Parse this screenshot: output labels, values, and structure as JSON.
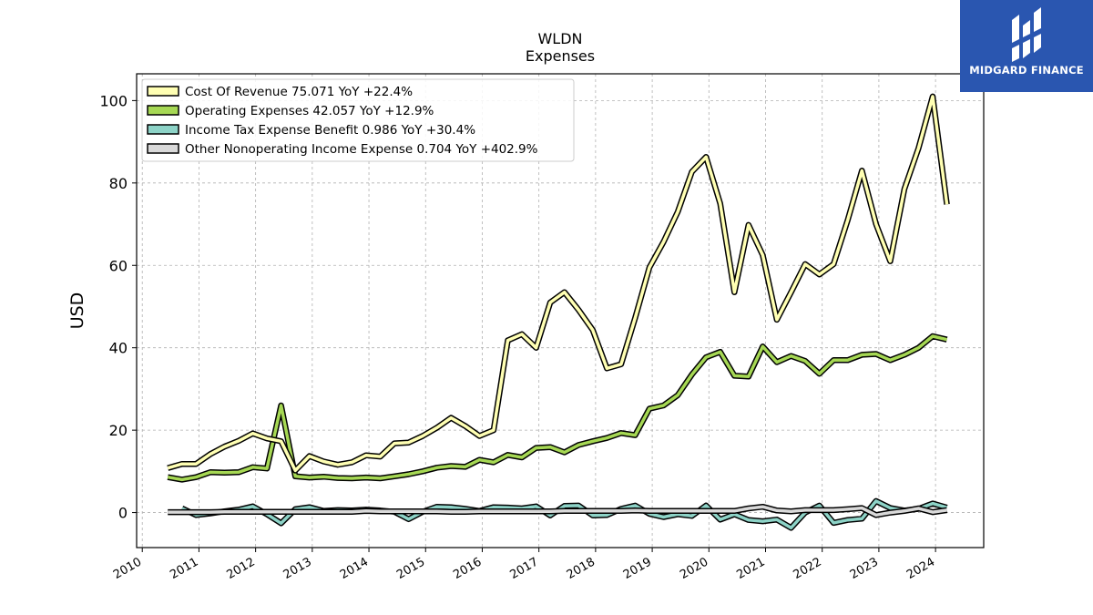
{
  "brand": {
    "name": "MIDGARD FINANCE",
    "color": "#2a56b0"
  },
  "chart_data": {
    "type": "line",
    "title": "WLDN",
    "subtitle": "Expenses",
    "xlabel": "",
    "ylabel": "USD",
    "xlim": [
      2009.9,
      2024.85
    ],
    "ylim": [
      -8.5,
      106.5
    ],
    "yticks": [
      0,
      20,
      40,
      60,
      80,
      100
    ],
    "xticks": [
      2010,
      2011,
      2012,
      2013,
      2014,
      2015,
      2016,
      2017,
      2018,
      2019,
      2020,
      2021,
      2022,
      2023,
      2024
    ],
    "grid": true,
    "legend_position": "top-left",
    "x": [
      2010.45,
      2010.7,
      2010.95,
      2011.2,
      2011.45,
      2011.7,
      2011.95,
      2012.2,
      2012.45,
      2012.7,
      2012.95,
      2013.2,
      2013.45,
      2013.7,
      2013.95,
      2014.2,
      2014.45,
      2014.7,
      2014.95,
      2015.2,
      2015.45,
      2015.7,
      2015.95,
      2016.2,
      2016.45,
      2016.7,
      2016.95,
      2017.2,
      2017.45,
      2017.7,
      2017.95,
      2018.2,
      2018.45,
      2018.7,
      2018.95,
      2019.2,
      2019.45,
      2019.7,
      2019.95,
      2020.2,
      2020.45,
      2020.7,
      2020.95,
      2021.2,
      2021.45,
      2021.7,
      2021.95,
      2022.2,
      2022.45,
      2022.7,
      2022.95,
      2023.2,
      2023.45,
      2023.7,
      2023.95,
      2024.2
    ],
    "series": [
      {
        "name": "Cost Of Revenue",
        "legend": "Cost Of Revenue  75.071 YoY +22.4%",
        "color": "#ffffb3",
        "values": [
          10.8,
          11.8,
          11.8,
          14.2,
          16.0,
          17.4,
          19.2,
          18.0,
          17.3,
          10.2,
          13.7,
          12.4,
          11.6,
          12.2,
          13.9,
          13.6,
          16.8,
          17.0,
          18.6,
          20.6,
          23.0,
          21.0,
          18.6,
          20.0,
          41.8,
          43.3,
          40.0,
          51.0,
          53.5,
          49.2,
          44.3,
          35.0,
          36.0,
          47.3,
          59.5,
          65.7,
          73.0,
          82.7,
          86.3,
          75.0,
          53.5,
          69.8,
          62.5,
          46.8,
          53.5,
          60.3,
          57.8,
          60.3,
          71.0,
          83.0,
          70.0,
          61.0,
          78.5,
          88.5,
          101.0,
          74.8
        ]
      },
      {
        "name": "Operating Expenses",
        "legend": "Operating Expenses  42.057 YoY +12.9%",
        "color": "#a6d854",
        "values": [
          8.6,
          8.0,
          8.6,
          9.8,
          9.7,
          9.8,
          11.0,
          10.7,
          26.0,
          8.8,
          8.5,
          8.7,
          8.4,
          8.3,
          8.5,
          8.3,
          8.8,
          9.3,
          10.0,
          10.9,
          11.3,
          11.1,
          12.8,
          12.2,
          14.0,
          13.4,
          15.7,
          15.9,
          14.6,
          16.4,
          17.3,
          18.1,
          19.3,
          18.8,
          25.2,
          26.0,
          28.5,
          33.5,
          37.7,
          39.0,
          33.2,
          33.0,
          40.3,
          36.5,
          38.0,
          36.8,
          33.7,
          37.0,
          37.0,
          38.3,
          38.5,
          37.0,
          38.3,
          40.0,
          42.8,
          42.0
        ]
      },
      {
        "name": "Income Tax Expense Benefit",
        "legend": "Income Tax Expense Benefit  0.986 YoY +30.4%",
        "color": "#8dd3c7",
        "values": [
          null,
          1.0,
          -0.6,
          -0.2,
          0.3,
          0.7,
          1.5,
          -0.4,
          -2.6,
          0.8,
          1.3,
          0.4,
          0.6,
          0.5,
          0.7,
          0.5,
          0.2,
          -1.6,
          0.2,
          1.4,
          1.3,
          0.9,
          0.4,
          1.3,
          1.2,
          1.0,
          1.5,
          -0.7,
          1.6,
          1.7,
          -0.7,
          -0.6,
          0.9,
          1.7,
          -0.3,
          -1.1,
          -0.4,
          -0.8,
          1.7,
          -1.7,
          -0.4,
          -1.8,
          -2.1,
          -1.7,
          -3.7,
          0.0,
          1.7,
          -2.5,
          -1.8,
          -1.5,
          2.8,
          1.1,
          0.5,
          0.9,
          2.2,
          1.2
        ]
      },
      {
        "name": "Other Nonoperating Income Expense",
        "legend": "Other Nonoperating Income Expense  0.704 YoY +402.9%",
        "color": "#d9d9d9",
        "values": [
          0.1,
          0.1,
          0.1,
          0.1,
          0.2,
          0.2,
          0.2,
          0.2,
          0.2,
          0.2,
          0.2,
          0.2,
          0.2,
          0.2,
          0.4,
          0.3,
          0.3,
          0.3,
          0.3,
          0.3,
          0.2,
          0.2,
          0.3,
          0.3,
          0.3,
          0.3,
          0.3,
          0.3,
          0.4,
          0.4,
          0.4,
          0.4,
          0.4,
          0.5,
          0.4,
          0.4,
          0.4,
          0.4,
          0.4,
          0.4,
          0.4,
          1.0,
          1.4,
          0.5,
          0.3,
          0.6,
          0.6,
          0.6,
          0.8,
          1.1,
          -0.6,
          0.0,
          0.4,
          1.0,
          0.1,
          0.6
        ]
      }
    ]
  }
}
